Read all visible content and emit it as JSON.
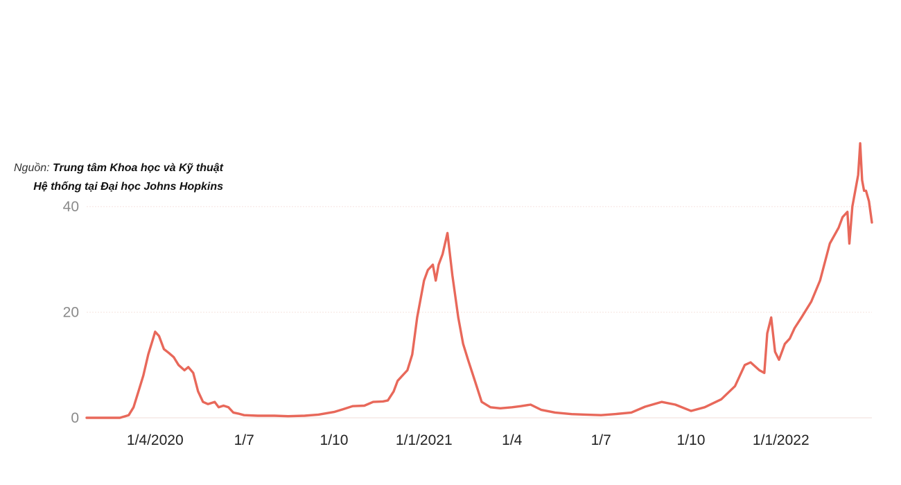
{
  "source": {
    "label": "Nguồn:",
    "name_line1": "Trung tâm Khoa học và Kỹ thuật",
    "name_line2": "Hệ thống tại Đại học Johns Hopkins"
  },
  "chart_data": {
    "type": "line",
    "title": "",
    "xlabel": "",
    "ylabel": "",
    "x_range": [
      "2020-01-22",
      "2022-04-04"
    ],
    "ylim": [
      0,
      50
    ],
    "y_ticks": [
      0,
      20,
      40
    ],
    "x_tick_labels": [
      "1/4/2020",
      "1/7",
      "1/10",
      "1/1/2021",
      "1/4",
      "1/7",
      "1/10",
      "1/1/2022"
    ],
    "x_tick_dates": [
      "2020-04-01",
      "2020-07-01",
      "2020-10-01",
      "2021-01-01",
      "2021-04-01",
      "2021-07-01",
      "2021-10-01",
      "2022-01-01"
    ],
    "grid": true,
    "color": "#e8685a",
    "series": [
      {
        "x": [
          "2020-01-22",
          "2020-02-25",
          "2020-03-05",
          "2020-03-10",
          "2020-03-15",
          "2020-03-20",
          "2020-03-25",
          "2020-03-30",
          "2020-04-01",
          "2020-04-05",
          "2020-04-10",
          "2020-04-15",
          "2020-04-20",
          "2020-04-25",
          "2020-05-01",
          "2020-05-05",
          "2020-05-10",
          "2020-05-15",
          "2020-05-20",
          "2020-05-25",
          "2020-06-01",
          "2020-06-05",
          "2020-06-10",
          "2020-06-15",
          "2020-06-20",
          "2020-06-25",
          "2020-07-01",
          "2020-07-15",
          "2020-08-01",
          "2020-08-15",
          "2020-09-01",
          "2020-09-15",
          "2020-10-01",
          "2020-10-10",
          "2020-10-20",
          "2020-11-01",
          "2020-11-10",
          "2020-11-20",
          "2020-11-25",
          "2020-12-01",
          "2020-12-05",
          "2020-12-10",
          "2020-12-15",
          "2020-12-20",
          "2020-12-25",
          "2021-01-01",
          "2021-01-05",
          "2021-01-10",
          "2021-01-13",
          "2021-01-16",
          "2021-01-20",
          "2021-01-25",
          "2021-01-30",
          "2021-02-05",
          "2021-02-10",
          "2021-02-15",
          "2021-02-22",
          "2021-03-01",
          "2021-03-10",
          "2021-03-20",
          "2021-04-01",
          "2021-04-10",
          "2021-04-20",
          "2021-05-01",
          "2021-05-15",
          "2021-06-01",
          "2021-06-15",
          "2021-07-01",
          "2021-07-15",
          "2021-08-01",
          "2021-08-15",
          "2021-09-01",
          "2021-09-15",
          "2021-10-01",
          "2021-10-15",
          "2021-11-01",
          "2021-11-15",
          "2021-11-25",
          "2021-12-01",
          "2021-12-10",
          "2021-12-15",
          "2021-12-18",
          "2021-12-22",
          "2021-12-26",
          "2021-12-30",
          "2022-01-05",
          "2022-01-10",
          "2022-01-15",
          "2022-01-22",
          "2022-02-01",
          "2022-02-10",
          "2022-02-20",
          "2022-03-01",
          "2022-03-05",
          "2022-03-10",
          "2022-03-12",
          "2022-03-15",
          "2022-03-18",
          "2022-03-21",
          "2022-03-23",
          "2022-03-25",
          "2022-03-27",
          "2022-03-29",
          "2022-04-01",
          "2022-04-04"
        ],
        "y": [
          0,
          0,
          0.5,
          2,
          5,
          8,
          12,
          15,
          16.3,
          15.5,
          13,
          12.3,
          11.5,
          10,
          9,
          9.6,
          8.5,
          5,
          3,
          2.6,
          3,
          2,
          2.3,
          2,
          1,
          0.8,
          0.5,
          0.4,
          0.4,
          0.3,
          0.4,
          0.6,
          1.1,
          1.6,
          2.2,
          2.3,
          3,
          3.1,
          3.3,
          5,
          7,
          8,
          9,
          12,
          19,
          26,
          28,
          29,
          26,
          29,
          31,
          35,
          27,
          19,
          14,
          11,
          7,
          3,
          2,
          1.8,
          2,
          2.2,
          2.5,
          1.5,
          1,
          0.7,
          0.6,
          0.5,
          0.7,
          1,
          2.1,
          3,
          2.5,
          1.3,
          2,
          3.5,
          6,
          10,
          10.5,
          9,
          8.5,
          16,
          19,
          12.5,
          11,
          14,
          15,
          17,
          19,
          22,
          26,
          33,
          36,
          38,
          39,
          33,
          40,
          43,
          46,
          52,
          45,
          43,
          43,
          41,
          37
        ]
      }
    ]
  }
}
